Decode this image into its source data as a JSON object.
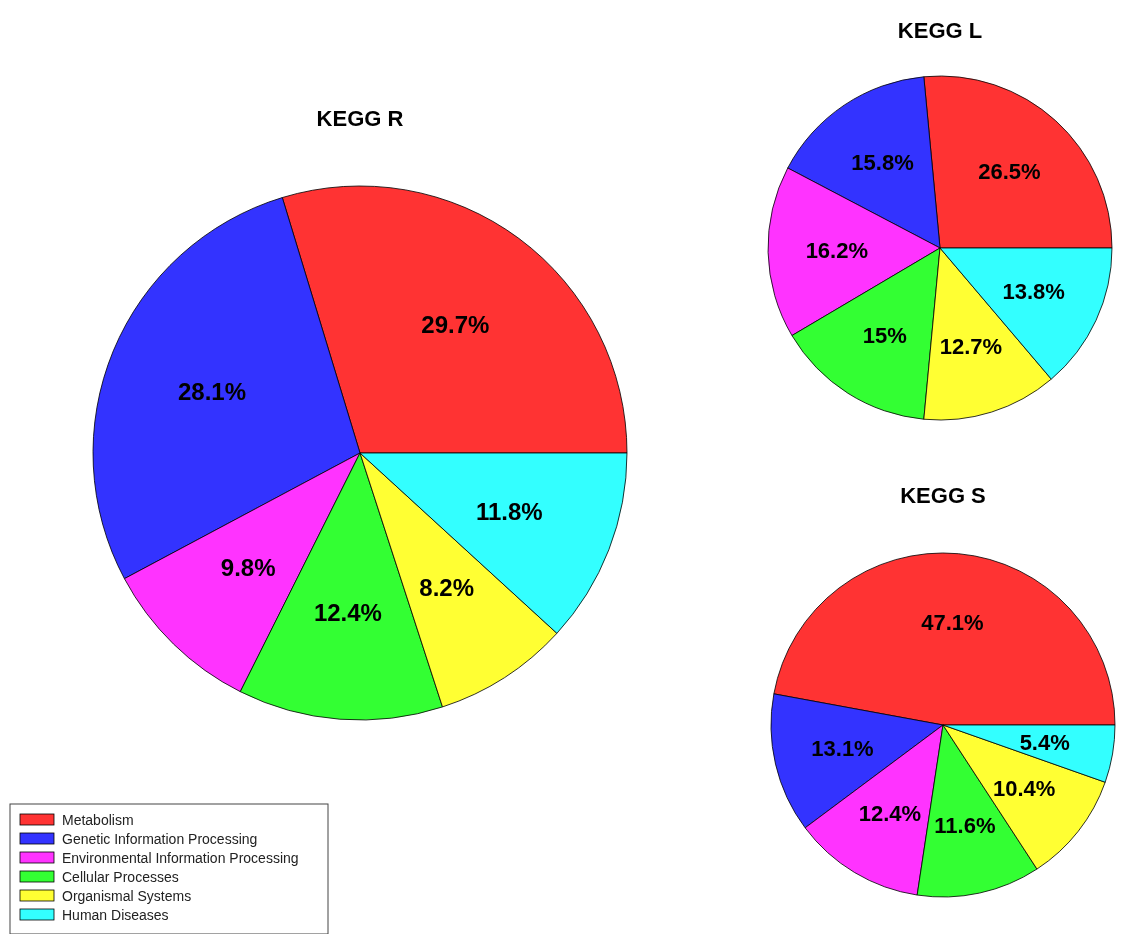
{
  "chart_data": [
    {
      "type": "pie",
      "title": "KEGG R",
      "categories": [
        "Metabolism",
        "Genetic Information Processing",
        "Environmental Information Processing",
        "Cellular Processes",
        "Organismal Systems",
        "Human Diseases"
      ],
      "values": [
        29.7,
        28.1,
        9.8,
        12.4,
        8.2,
        11.8
      ],
      "value_labels": [
        "29.7%",
        "28.1%",
        "9.8%",
        "12.4%",
        "8.2%",
        "11.8%"
      ],
      "colors": [
        "#ff3333",
        "#3333ff",
        "#ff33ff",
        "#33ff33",
        "#ffff33",
        "#33ffff"
      ],
      "legend": "bottom left"
    },
    {
      "type": "pie",
      "title": "KEGG L",
      "categories": [
        null,
        null,
        null,
        null,
        null,
        null
      ],
      "values": [
        26.5,
        15.8,
        16.2,
        15,
        12.7,
        13.8
      ],
      "value_labels": [
        "26.5%",
        "15.8%",
        "16.2%",
        "15%",
        "12.7%",
        "13.8%"
      ],
      "colors": [
        "#ff3333",
        "#3333ff",
        "#ff33ff",
        "#33ff33",
        "#ffff33",
        "#33ffff"
      ]
    },
    {
      "type": "pie",
      "title": "KEGG S",
      "categories": [
        null,
        null,
        null,
        null,
        null,
        null
      ],
      "values": [
        47.1,
        13.1,
        12.4,
        11.6,
        10.4,
        5.4
      ],
      "value_labels": [
        "47.1%",
        "13.1%",
        "12.4%",
        "11.6%",
        "10.4%",
        "5.4%"
      ],
      "colors": [
        "#ff3333",
        "#3333ff",
        "#ff33ff",
        "#33ff33",
        "#ffff33",
        "#33ffff"
      ]
    }
  ]
}
